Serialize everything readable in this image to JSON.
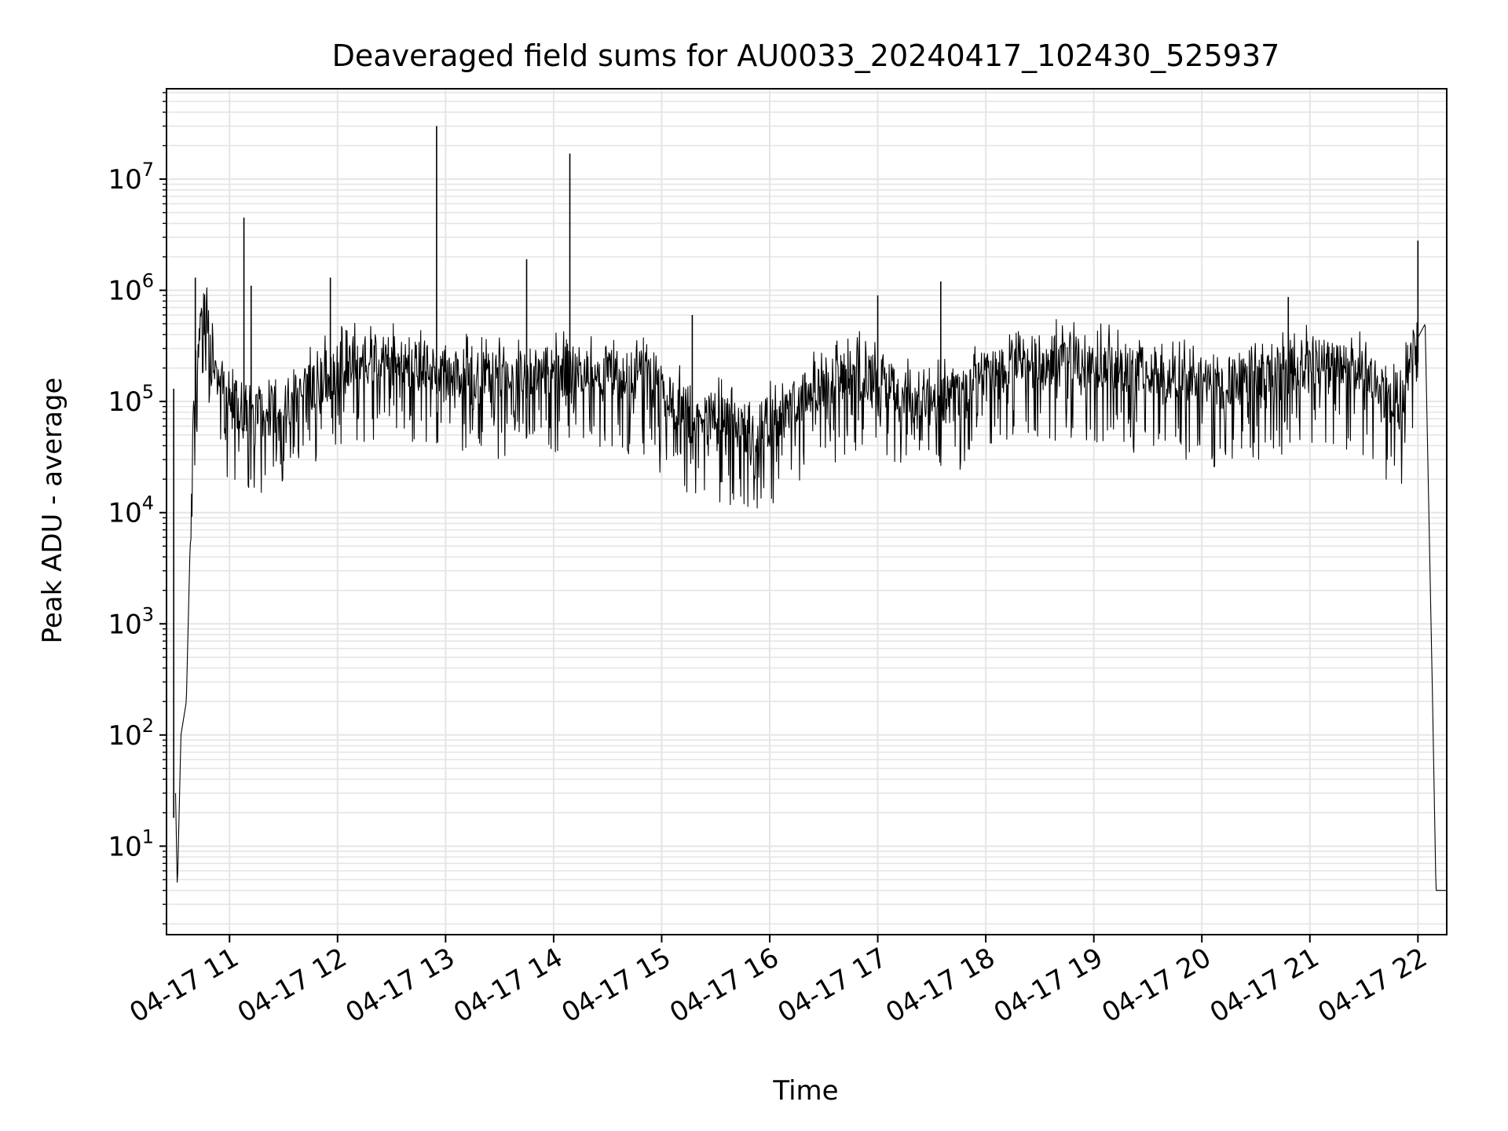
{
  "chart_data": {
    "type": "line",
    "title": "Deaveraged field sums for AU0033_20240417_102430_525937",
    "xlabel": "Time",
    "ylabel": "Peak ADU - average",
    "y_scale": "log",
    "ylim": [
      1.6,
      65000000
    ],
    "xlim": [
      "2024-04-17 10:25",
      "2024-04-17 22:16"
    ],
    "x_ticks": [
      {
        "value": "2024-04-17 11:00",
        "label": "04-17 11"
      },
      {
        "value": "2024-04-17 12:00",
        "label": "04-17 12"
      },
      {
        "value": "2024-04-17 13:00",
        "label": "04-17 13"
      },
      {
        "value": "2024-04-17 14:00",
        "label": "04-17 14"
      },
      {
        "value": "2024-04-17 15:00",
        "label": "04-17 15"
      },
      {
        "value": "2024-04-17 16:00",
        "label": "04-17 16"
      },
      {
        "value": "2024-04-17 17:00",
        "label": "04-17 17"
      },
      {
        "value": "2024-04-17 18:00",
        "label": "04-17 18"
      },
      {
        "value": "2024-04-17 19:00",
        "label": "04-17 19"
      },
      {
        "value": "2024-04-17 20:00",
        "label": "04-17 20"
      },
      {
        "value": "2024-04-17 21:00",
        "label": "04-17 21"
      },
      {
        "value": "2024-04-17 22:00",
        "label": "04-17 22"
      }
    ],
    "y_ticks": [
      {
        "value": 10,
        "base": "10",
        "exp": "1"
      },
      {
        "value": 100,
        "base": "10",
        "exp": "2"
      },
      {
        "value": 1000,
        "base": "10",
        "exp": "3"
      },
      {
        "value": 10000,
        "base": "10",
        "exp": "4"
      },
      {
        "value": 100000,
        "base": "10",
        "exp": "5"
      },
      {
        "value": 1000000,
        "base": "10",
        "exp": "6"
      },
      {
        "value": 10000000,
        "base": "10",
        "exp": "7"
      }
    ],
    "grid": true,
    "grid_minor": true,
    "line_color": "#000000",
    "grid_color": "#e5e5e5",
    "series": [
      {
        "x": [
          "2024-04-17 10:30",
          "2024-04-17 10:31",
          "2024-04-17 10:33",
          "2024-04-17 10:36",
          "2024-04-17 10:40",
          "2024-04-17 10:44",
          "2024-04-17 10:48",
          "2024-04-17 10:52",
          "2024-04-17 10:55",
          "2024-04-17 11:00",
          "2024-04-17 11:08",
          "2024-04-17 11:20",
          "2024-04-17 11:35",
          "2024-04-17 11:50",
          "2024-04-17 12:10",
          "2024-04-17 12:30",
          "2024-04-17 12:50",
          "2024-04-17 13:10",
          "2024-04-17 13:30",
          "2024-04-17 13:50",
          "2024-04-17 14:10",
          "2024-04-17 14:30",
          "2024-04-17 14:50",
          "2024-04-17 15:10",
          "2024-04-17 15:30",
          "2024-04-17 15:50",
          "2024-04-17 16:10",
          "2024-04-17 16:30",
          "2024-04-17 16:50",
          "2024-04-17 17:10",
          "2024-04-17 17:30",
          "2024-04-17 17:50",
          "2024-04-17 18:10",
          "2024-04-17 18:30",
          "2024-04-17 18:50",
          "2024-04-17 19:10",
          "2024-04-17 19:30",
          "2024-04-17 19:50",
          "2024-04-17 20:10",
          "2024-04-17 20:30",
          "2024-04-17 20:50",
          "2024-04-17 21:10",
          "2024-04-17 21:30",
          "2024-04-17 21:40",
          "2024-04-17 21:50",
          "2024-04-17 21:55",
          "2024-04-17 21:59",
          "2024-04-17 22:04",
          "2024-04-17 22:08",
          "2024-04-17 22:10",
          "2024-04-17 22:11",
          "2024-04-17 22:16"
        ],
        "y": [
          30,
          4,
          100,
          200,
          100000,
          700000,
          500000,
          250000,
          150000,
          100000,
          90000,
          80000,
          100000,
          150000,
          250000,
          230000,
          200000,
          180000,
          170000,
          180000,
          200000,
          190000,
          170000,
          90000,
          70000,
          55000,
          80000,
          150000,
          180000,
          130000,
          100000,
          120000,
          220000,
          250000,
          230000,
          210000,
          180000,
          150000,
          140000,
          160000,
          200000,
          220000,
          180000,
          120000,
          80000,
          200000,
          350000,
          500000,
          250,
          4,
          4,
          4
        ],
        "spikes": [
          {
            "x": "2024-04-17 10:29",
            "y": 130000
          },
          {
            "x": "2024-04-17 10:41",
            "y": 1300000
          },
          {
            "x": "2024-04-17 11:08",
            "y": 4500000
          },
          {
            "x": "2024-04-17 11:12",
            "y": 1100000
          },
          {
            "x": "2024-04-17 11:56",
            "y": 1300000
          },
          {
            "x": "2024-04-17 12:55",
            "y": 30000000
          },
          {
            "x": "2024-04-17 13:45",
            "y": 1900000
          },
          {
            "x": "2024-04-17 14:09",
            "y": 17000000
          },
          {
            "x": "2024-04-17 15:17",
            "y": 600000
          },
          {
            "x": "2024-04-17 17:00",
            "y": 900000
          },
          {
            "x": "2024-04-17 17:35",
            "y": 1200000
          },
          {
            "x": "2024-04-17 20:48",
            "y": 870000
          },
          {
            "x": "2024-04-17 22:00",
            "y": 2800000
          }
        ]
      }
    ]
  }
}
